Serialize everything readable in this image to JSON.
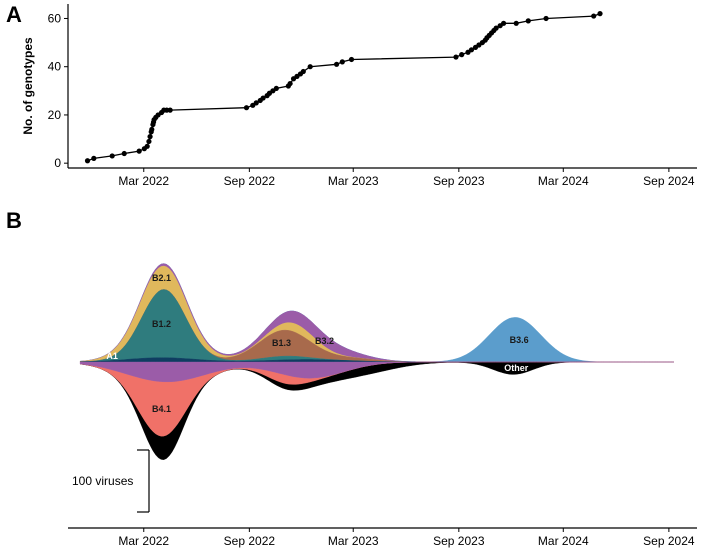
{
  "chart_data": [
    {
      "panel": "A",
      "type": "line",
      "ylabel": "No. of genotypes",
      "xlabel": "",
      "ylim": [
        -2,
        66
      ],
      "xlim": [
        "2021-10-20",
        "2024-10-20"
      ],
      "x_ticks": [
        "Mar 2022",
        "Sep 2022",
        "Mar 2023",
        "Sep 2023",
        "Mar 2024",
        "Sep 2024"
      ],
      "x_tick_dates": [
        "2022-03-01",
        "2022-09-01",
        "2023-03-01",
        "2023-09-01",
        "2024-03-01",
        "2024-09-01"
      ],
      "y_ticks": [
        0,
        20,
        40,
        60
      ],
      "grid": false,
      "x": [
        "2021-11-23",
        "2021-12-04",
        "2022-01-05",
        "2022-01-26",
        "2022-02-21",
        "2022-03-02",
        "2022-03-07",
        "2022-03-10",
        "2022-03-12",
        "2022-03-14",
        "2022-03-15",
        "2022-03-17",
        "2022-03-18",
        "2022-03-19",
        "2022-03-22",
        "2022-03-26",
        "2022-04-01",
        "2022-04-05",
        "2022-04-10",
        "2022-04-16",
        "2022-08-27",
        "2022-09-07",
        "2022-09-13",
        "2022-09-20",
        "2022-09-25",
        "2022-10-02",
        "2022-10-06",
        "2022-10-12",
        "2022-10-18",
        "2022-11-08",
        "2022-11-11",
        "2022-11-17",
        "2022-11-23",
        "2022-11-29",
        "2022-12-04",
        "2022-12-16",
        "2023-01-31",
        "2023-02-10",
        "2023-02-26",
        "2023-08-27",
        "2023-09-06",
        "2023-09-17",
        "2023-09-23",
        "2023-09-30",
        "2023-10-06",
        "2023-10-12",
        "2023-10-17",
        "2023-10-20",
        "2023-10-24",
        "2023-10-28",
        "2023-11-01",
        "2023-11-05",
        "2023-11-12",
        "2023-11-18",
        "2023-12-10",
        "2023-12-31",
        "2024-01-31",
        "2024-04-23",
        "2024-05-04"
      ],
      "values": [
        1,
        2,
        3,
        4,
        5,
        6,
        7,
        9,
        11,
        13,
        14,
        16,
        17,
        18,
        19,
        20,
        21,
        22,
        22,
        22,
        23,
        24,
        25,
        26,
        27,
        28,
        29,
        30,
        31,
        32,
        33,
        35,
        36,
        37,
        38,
        40,
        41,
        42,
        43,
        44,
        45,
        46,
        47,
        48,
        49,
        50,
        51,
        52,
        53,
        54,
        55,
        56,
        57,
        58,
        58,
        59,
        60,
        61,
        62
      ]
    },
    {
      "panel": "B",
      "type": "area",
      "subtype": "streamgraph",
      "xlim": [
        "2021-10-20",
        "2024-10-20"
      ],
      "x_ticks": [
        "Mar 2022",
        "Sep 2022",
        "Mar 2023",
        "Sep 2023",
        "Mar 2024",
        "Sep 2024"
      ],
      "x_tick_dates": [
        "2022-03-01",
        "2022-09-01",
        "2023-03-01",
        "2023-09-01",
        "2024-03-01",
        "2024-09-01"
      ],
      "scale_bar_label": "100 viruses",
      "scale_bar_value": 100,
      "grid": false,
      "series_above": [
        {
          "name": "A1",
          "color": "#0f3d61",
          "label_x": "2022-01-05",
          "peaks": [
            {
              "center": "2022-04-01",
              "height": 7,
              "width": 60
            },
            {
              "center": "2022-12-10",
              "height": 4,
              "width": 70
            }
          ],
          "base": 3
        },
        {
          "name": "B1.2",
          "color": "#2f7c7e",
          "label_x": "2022-04-01",
          "peaks": [
            {
              "center": "2022-04-05",
              "height": 110,
              "width": 38
            },
            {
              "center": "2022-11-01",
              "height": 6,
              "width": 40
            }
          ]
        },
        {
          "name": "B1.3",
          "color": "#a86a4c",
          "label_x": "2022-10-27",
          "peaks": [
            {
              "center": "2022-11-01",
              "height": 42,
              "width": 45
            },
            {
              "center": "2023-03-01",
              "height": 4,
              "width": 40
            }
          ]
        },
        {
          "name": "B2.1",
          "color": "#e0b85c",
          "label_x": "2022-04-01",
          "peaks": [
            {
              "center": "2022-04-01",
              "height": 38,
              "width": 50
            },
            {
              "center": "2022-11-25",
              "height": 14,
              "width": 35
            }
          ]
        },
        {
          "name": "B3.2",
          "color": "#9b5ca8",
          "label_x": "2023-01-10",
          "peaks": [
            {
              "center": "2022-04-20",
              "height": 4,
              "width": 60
            },
            {
              "center": "2022-12-15",
              "height": 22,
              "width": 60
            }
          ]
        },
        {
          "name": "B3.6",
          "color": "#5b9dcc",
          "label_x": "2023-12-15",
          "peaks": [
            {
              "center": "2023-12-08",
              "height": 72,
              "width": 45
            }
          ]
        }
      ],
      "series_below": [
        {
          "name": "B3.2",
          "color": "#9b5ca8",
          "label_x": "2022-06-10",
          "peaks": [
            {
              "center": "2022-04-10",
              "height": 32,
              "width": 70
            },
            {
              "center": "2022-12-15",
              "height": 26,
              "width": 60
            }
          ]
        },
        {
          "name": "B4.1",
          "color": "#f07168",
          "label_x": "2022-04-01",
          "peaks": [
            {
              "center": "2022-04-01",
              "height": 88,
              "width": 40
            },
            {
              "center": "2022-11-01",
              "height": 14,
              "width": 35
            }
          ]
        },
        {
          "name": "Other",
          "color": "#000000",
          "label_x": "2023-12-10",
          "peaks": [
            {
              "center": "2022-04-05",
              "height": 38,
              "width": 30
            },
            {
              "center": "2022-11-10",
              "height": 8,
              "width": 40
            },
            {
              "center": "2023-03-20",
              "height": 14,
              "width": 60
            },
            {
              "center": "2023-12-05",
              "height": 20,
              "width": 35
            }
          ],
          "base": 3
        }
      ],
      "labels": [
        {
          "text": "A1",
          "x": "2022-01-05",
          "side": "above"
        },
        {
          "text": "B1.2",
          "x": "2022-04-01",
          "side": "above"
        },
        {
          "text": "B2.1",
          "x": "2022-04-01",
          "side": "above"
        },
        {
          "text": "B1.3",
          "x": "2022-10-27",
          "side": "above"
        },
        {
          "text": "B3.2",
          "x": "2023-01-10",
          "side": "above"
        },
        {
          "text": "B4.1",
          "x": "2022-04-01",
          "side": "below"
        },
        {
          "text": "B3.6",
          "x": "2023-12-15",
          "side": "above"
        },
        {
          "text": "Other",
          "x": "2023-12-10",
          "side": "below"
        }
      ]
    }
  ],
  "panel_a": {
    "letter": "A",
    "ylabel": "No. of genotypes"
  },
  "panel_b": {
    "letter": "B",
    "scale_label": "100 viruses"
  }
}
